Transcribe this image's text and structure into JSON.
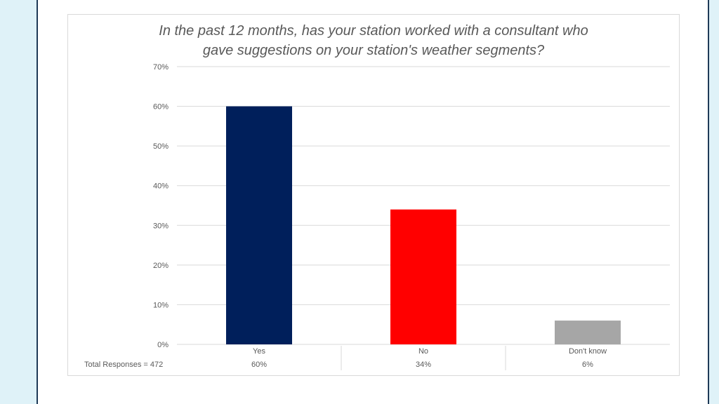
{
  "colors": {
    "background": "#dff2f8",
    "slide_border": "#1f3a57",
    "gridline": "#d9d9d9",
    "axis_text": "#595959"
  },
  "chart_data": {
    "type": "bar",
    "title": "In the past 12 months, has your station worked with a consultant who\ngave suggestions on your station's weather segments?",
    "categories": [
      "Yes",
      "No",
      "Don't know"
    ],
    "values": [
      60,
      34,
      6
    ],
    "colors": [
      "#001f5b",
      "#ff0000",
      "#a6a6a6"
    ],
    "ylim": [
      0,
      70
    ],
    "yticks": [
      "0%",
      "10%",
      "20%",
      "30%",
      "40%",
      "50%",
      "60%",
      "70%"
    ],
    "grid": true,
    "legend": "none",
    "data_table": {
      "row_label": "Total Responses = 472",
      "values": [
        "60%",
        "34%",
        "6%"
      ]
    }
  }
}
